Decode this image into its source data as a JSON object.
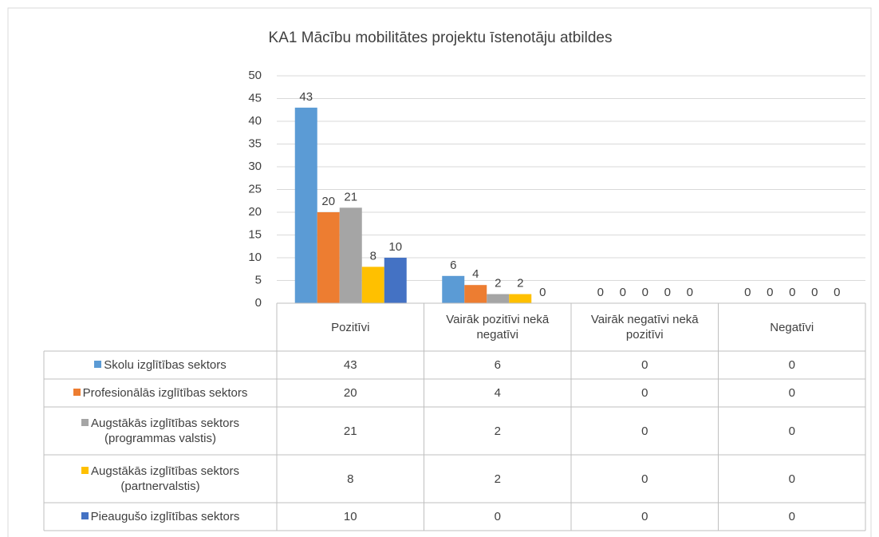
{
  "chart_data": {
    "type": "bar",
    "title": "KA1 Mācību mobilitātes projektu īstenotāju atbildes",
    "categories": [
      "Pozitīvi",
      "Vairāk pozitīvi nekā negatīvi",
      "Vairāk negatīvi nekā pozitīvi",
      "Negatīvi"
    ],
    "series": [
      {
        "name": "Skolu izglītības sektors",
        "color": "#5b9bd5",
        "values": [
          43,
          6,
          0,
          0
        ]
      },
      {
        "name": "Profesionālās izglītības sektors",
        "color": "#ed7d31",
        "values": [
          20,
          4,
          0,
          0
        ]
      },
      {
        "name": "Augstākās izglītības sektors (programmas valstis)",
        "color": "#a5a5a5",
        "values": [
          21,
          2,
          0,
          0
        ]
      },
      {
        "name": "Augstākās izglītības sektors (partnervalstis)",
        "color": "#ffc000",
        "values": [
          8,
          2,
          0,
          0
        ]
      },
      {
        "name": "Pieaugušo izglītības sektors",
        "color": "#4472c4",
        "values": [
          10,
          0,
          0,
          0
        ]
      }
    ],
    "ylim": [
      0,
      50
    ],
    "yticks": [
      0,
      5,
      10,
      15,
      20,
      25,
      30,
      35,
      40,
      45,
      50
    ],
    "grid": true
  }
}
